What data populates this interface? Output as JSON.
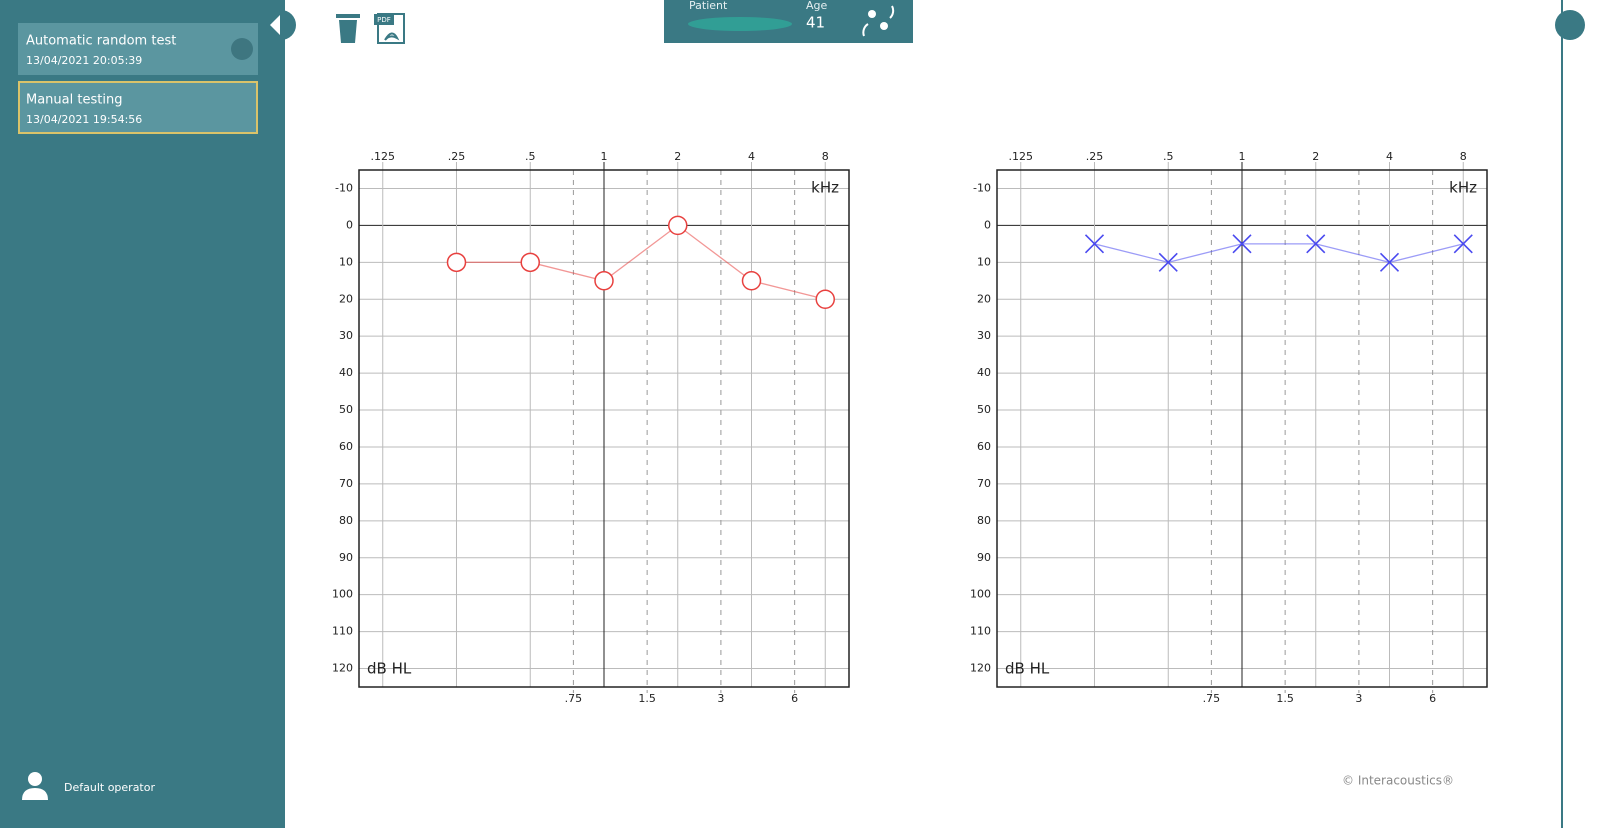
{
  "sidebar": {
    "sessions": [
      {
        "title": "Automatic random test",
        "date": "13/04/2021 20:05:39"
      },
      {
        "title": "Manual testing",
        "date": "13/04/2021 19:54:56"
      }
    ],
    "operator": "Default operator"
  },
  "header": {
    "pdf_icon": "PDF",
    "patient_label": "Patient",
    "age_label": "Age",
    "age": 41
  },
  "copyright": "© Interacoustics®",
  "chart_data": [
    {
      "type": "line",
      "x_unit": "kHz",
      "y_unit": "dB HL",
      "log_x": true,
      "y_reversed": true,
      "grid": true,
      "x": [
        0.25,
        0.5,
        1,
        2,
        4,
        8
      ],
      "series": [
        {
          "color": "#e8413f",
          "marker": "circle",
          "values": [
            10,
            10,
            15,
            0,
            15,
            20
          ]
        }
      ],
      "xlim": [
        0.1,
        10
      ],
      "xticks": [
        {
          "value": 0.125,
          "label": ".125"
        },
        {
          "value": 0.25,
          "label": ".25"
        },
        {
          "value": 0.5,
          "label": ".5"
        },
        1,
        2,
        4,
        8
      ],
      "xticks_secondary": [
        {
          "value": 0.75,
          "label": ".75"
        },
        1.5,
        3,
        6
      ],
      "ylim": [
        -15,
        125
      ],
      "yticks": [
        -10,
        0,
        10,
        20,
        30,
        40,
        50,
        60,
        70,
        80,
        90,
        100,
        110,
        120
      ]
    },
    {
      "type": "line",
      "x_unit": "kHz",
      "y_unit": "dB HL",
      "log_x": true,
      "y_reversed": true,
      "grid": true,
      "x": [
        0.25,
        0.5,
        1,
        2,
        4,
        8
      ],
      "series": [
        {
          "color": "#4a4af0",
          "marker": "cross",
          "values": [
            5,
            10,
            5,
            5,
            10,
            5
          ]
        }
      ],
      "xlim": [
        0.1,
        10
      ],
      "xticks": [
        {
          "value": 0.125,
          "label": ".125"
        },
        {
          "value": 0.25,
          "label": ".25"
        },
        {
          "value": 0.5,
          "label": ".5"
        },
        1,
        2,
        4,
        8
      ],
      "xticks_secondary": [
        {
          "value": 0.75,
          "label": ".75"
        },
        1.5,
        3,
        6
      ],
      "ylim": [
        -15,
        125
      ],
      "yticks": [
        -10,
        0,
        10,
        20,
        30,
        40,
        50,
        60,
        70,
        80,
        90,
        100,
        110,
        120
      ]
    }
  ]
}
